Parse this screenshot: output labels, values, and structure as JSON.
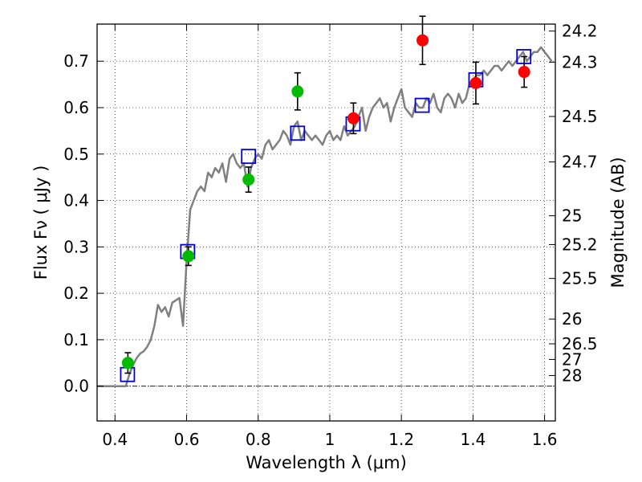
{
  "chart_data": {
    "type": "scatter",
    "xlabel": "Wavelength  λ (μm)",
    "ylabel": "Flux  Fν  ( μJy )",
    "y2label": "Magnitude (AB)",
    "xlim": [
      0.35,
      1.63
    ],
    "ylim": [
      -0.075,
      0.78
    ],
    "grid": true,
    "x_ticks": [
      "0.4",
      "0.6",
      "0.8",
      "1",
      "1.2",
      "1.4",
      "1.6"
    ],
    "x_tick_values": [
      0.4,
      0.6,
      0.8,
      1.0,
      1.2,
      1.4,
      1.6
    ],
    "y_ticks": [
      "0.0",
      "0.1",
      "0.2",
      "0.3",
      "0.4",
      "0.5",
      "0.6",
      "0.7"
    ],
    "y_tick_values": [
      0.0,
      0.1,
      0.2,
      0.3,
      0.4,
      0.5,
      0.6,
      0.7
    ],
    "y2_ticks": [
      {
        "label": "24.2",
        "flux": 0.765
      },
      {
        "label": "24.3",
        "flux": 0.698
      },
      {
        "label": "24.5",
        "flux": 0.581
      },
      {
        "label": "24.7",
        "flux": 0.483
      },
      {
        "label": "25",
        "flux": 0.367
      },
      {
        "label": "25.2",
        "flux": 0.305
      },
      {
        "label": "25.5",
        "flux": 0.232
      },
      {
        "label": "26",
        "flux": 0.1445
      },
      {
        "label": "26.5",
        "flux": 0.0912
      },
      {
        "label": "27",
        "flux": 0.0575
      },
      {
        "label": "28",
        "flux": 0.0229
      }
    ],
    "colors": {
      "model_line": "#808080",
      "green_points": "#00bb00",
      "red_points": "#ff0000",
      "model_squares": "#0000dd",
      "error_bars": "#000000"
    },
    "series": [
      {
        "kind": "line",
        "x": [
          0.35,
          0.43,
          0.44,
          0.45,
          0.46,
          0.47,
          0.48,
          0.49,
          0.5,
          0.51,
          0.52,
          0.53,
          0.54,
          0.55,
          0.56,
          0.57,
          0.58,
          0.59,
          0.6,
          0.61,
          0.62,
          0.63,
          0.64,
          0.65,
          0.66,
          0.67,
          0.68,
          0.69,
          0.7,
          0.71,
          0.72,
          0.73,
          0.74,
          0.75,
          0.76,
          0.77,
          0.78,
          0.79,
          0.8,
          0.81,
          0.82,
          0.83,
          0.84,
          0.85,
          0.86,
          0.87,
          0.88,
          0.89,
          0.9,
          0.91,
          0.92,
          0.93,
          0.94,
          0.95,
          0.96,
          0.97,
          0.98,
          0.99,
          1.0,
          1.01,
          1.02,
          1.03,
          1.04,
          1.05,
          1.06,
          1.07,
          1.08,
          1.09,
          1.1,
          1.11,
          1.12,
          1.13,
          1.14,
          1.15,
          1.16,
          1.17,
          1.18,
          1.19,
          1.2,
          1.21,
          1.22,
          1.23,
          1.24,
          1.25,
          1.26,
          1.27,
          1.28,
          1.29,
          1.3,
          1.31,
          1.32,
          1.33,
          1.34,
          1.35,
          1.36,
          1.37,
          1.38,
          1.39,
          1.4,
          1.41,
          1.42,
          1.43,
          1.44,
          1.45,
          1.46,
          1.47,
          1.48,
          1.49,
          1.5,
          1.51,
          1.52,
          1.53,
          1.54,
          1.55,
          1.56,
          1.57,
          1.58,
          1.59,
          1.6,
          1.61,
          1.62
        ],
        "y": [
          0.0,
          0.0,
          0.025,
          0.045,
          0.06,
          0.07,
          0.075,
          0.085,
          0.1,
          0.13,
          0.175,
          0.16,
          0.17,
          0.15,
          0.18,
          0.185,
          0.19,
          0.13,
          0.27,
          0.38,
          0.4,
          0.42,
          0.43,
          0.42,
          0.46,
          0.45,
          0.47,
          0.46,
          0.48,
          0.44,
          0.49,
          0.5,
          0.48,
          0.47,
          0.48,
          0.43,
          0.47,
          0.49,
          0.5,
          0.49,
          0.52,
          0.53,
          0.51,
          0.52,
          0.53,
          0.55,
          0.54,
          0.52,
          0.56,
          0.57,
          0.53,
          0.55,
          0.54,
          0.53,
          0.54,
          0.53,
          0.52,
          0.54,
          0.55,
          0.53,
          0.54,
          0.53,
          0.56,
          0.54,
          0.55,
          0.56,
          0.58,
          0.6,
          0.55,
          0.58,
          0.6,
          0.61,
          0.62,
          0.6,
          0.61,
          0.57,
          0.6,
          0.62,
          0.64,
          0.6,
          0.59,
          0.58,
          0.61,
          0.6,
          0.6,
          0.62,
          0.61,
          0.63,
          0.6,
          0.59,
          0.62,
          0.63,
          0.62,
          0.6,
          0.63,
          0.61,
          0.62,
          0.65,
          0.66,
          0.67,
          0.67,
          0.68,
          0.67,
          0.68,
          0.69,
          0.69,
          0.68,
          0.69,
          0.7,
          0.69,
          0.7,
          0.71,
          0.72,
          0.7,
          0.71,
          0.72,
          0.72,
          0.73,
          0.72,
          0.71,
          0.7
        ]
      },
      {
        "kind": "squares",
        "x": [
          0.435,
          0.603,
          0.773,
          0.91,
          1.065,
          1.258,
          1.408,
          1.542
        ],
        "y": [
          0.025,
          0.29,
          0.495,
          0.545,
          0.565,
          0.605,
          0.66,
          0.71
        ]
      },
      {
        "kind": "points",
        "color": "green",
        "x": [
          0.436,
          0.605,
          0.773,
          0.91
        ],
        "y": [
          0.05,
          0.28,
          0.445,
          0.635
        ],
        "err": [
          0.022,
          0.02,
          0.027,
          0.04
        ]
      },
      {
        "kind": "points",
        "color": "red",
        "x": [
          1.066,
          1.259,
          1.408,
          1.543
        ],
        "y": [
          0.577,
          0.745,
          0.653,
          0.677
        ],
        "err": [
          0.033,
          0.052,
          0.045,
          0.033
        ]
      }
    ]
  }
}
